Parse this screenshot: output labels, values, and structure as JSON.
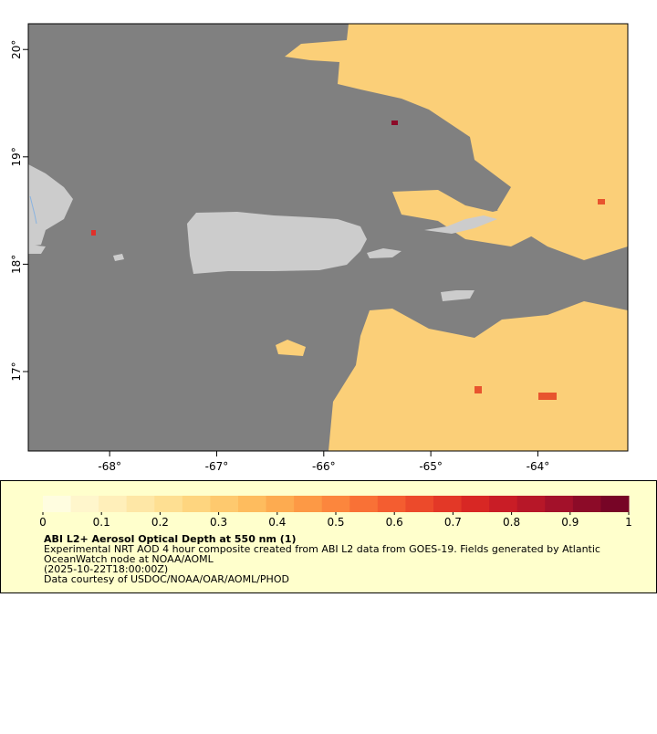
{
  "chart_data": {
    "type": "map",
    "title": "ABI L2+ Aerosol Optical Depth at 550 nm (1)",
    "notes": [
      "Experimental NRT AOD 4 hour composite created from ABI L2 data from GOES-19. Fields generated by Atlantic",
      "OceanWatch node at NOAA/AOML",
      "(2025-10-22T18:00:00Z)",
      "Data courtesy of USDOC/NOAA/OAR/AOML/PHOD"
    ],
    "xlim": [
      -68.76,
      -63.16
    ],
    "ylim": [
      16.26,
      20.24
    ],
    "xticks": [
      {
        "value": -68,
        "label": "-68°"
      },
      {
        "value": -67,
        "label": "-67°"
      },
      {
        "value": -66,
        "label": "-66°"
      },
      {
        "value": -65,
        "label": "-65°"
      },
      {
        "value": -64,
        "label": "-64°"
      }
    ],
    "yticks": [
      {
        "value": 17,
        "label": "17°"
      },
      {
        "value": 18,
        "label": "18°"
      },
      {
        "value": 19,
        "label": "19°"
      },
      {
        "value": 20,
        "label": "20°"
      }
    ],
    "colorbar": {
      "lim": [
        0,
        1
      ],
      "ticks": [
        0,
        0.1,
        0.2,
        0.3,
        0.4,
        0.5,
        0.6,
        0.7,
        0.8,
        0.9,
        1
      ],
      "colors": [
        "#fffde0",
        "#fff6cc",
        "#ffefba",
        "#fee7a6",
        "#fedf92",
        "#fed57f",
        "#fec96e",
        "#febc5e",
        "#fdab50",
        "#fd9945",
        "#fc863d",
        "#f97136",
        "#f45d30",
        "#ec4a2b",
        "#e33827",
        "#d82724",
        "#c91d26",
        "#b71728",
        "#a3112a",
        "#8c0b28",
        "#770526"
      ]
    }
  }
}
